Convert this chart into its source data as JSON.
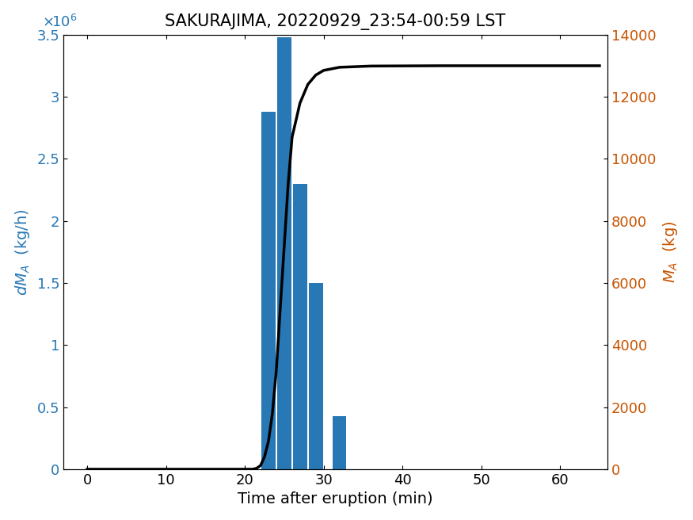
{
  "title": "SAKURAJIMA, 20220929_23:54-00:59 LST",
  "xlabel": "Time after eruption (min)",
  "bar_centers": [
    23,
    25,
    27,
    29,
    32
  ],
  "bar_heights": [
    2880000,
    3480000,
    2300000,
    1500000,
    430000
  ],
  "bar_width": 1.8,
  "bar_color": "#2878b5",
  "xlim": [
    -3,
    66
  ],
  "ylim_left": [
    0,
    3500000
  ],
  "ylim_right": [
    0,
    14000
  ],
  "xticks": [
    0,
    10,
    20,
    30,
    40,
    50,
    60
  ],
  "yticks_left_vals": [
    0,
    500000,
    1000000,
    1500000,
    2000000,
    2500000,
    3000000,
    3500000
  ],
  "yticks_left_labels": [
    "0",
    "0.5",
    "1",
    "1.5",
    "2",
    "2.5",
    "3",
    "3.5"
  ],
  "yticks_right": [
    0,
    2000,
    4000,
    6000,
    8000,
    10000,
    12000,
    14000
  ],
  "cumulative_x": [
    0,
    21.0,
    21.5,
    22.0,
    22.5,
    23.0,
    23.5,
    24.0,
    24.5,
    25.0,
    25.5,
    26.0,
    27.0,
    28.0,
    29.0,
    30.0,
    32.0,
    36.0,
    45.0,
    65.0
  ],
  "cumulative_y": [
    0,
    0,
    30,
    120,
    400,
    900,
    1800,
    3200,
    5200,
    7200,
    9200,
    10700,
    11800,
    12400,
    12700,
    12850,
    12950,
    12990,
    13000,
    13000
  ],
  "line_color": "#000000",
  "line_width": 2.5,
  "title_fontsize": 15,
  "label_fontsize": 14,
  "tick_fontsize": 13,
  "left_color": "#2878b5",
  "right_color": "#c85400",
  "sci_label": "×10⁶"
}
